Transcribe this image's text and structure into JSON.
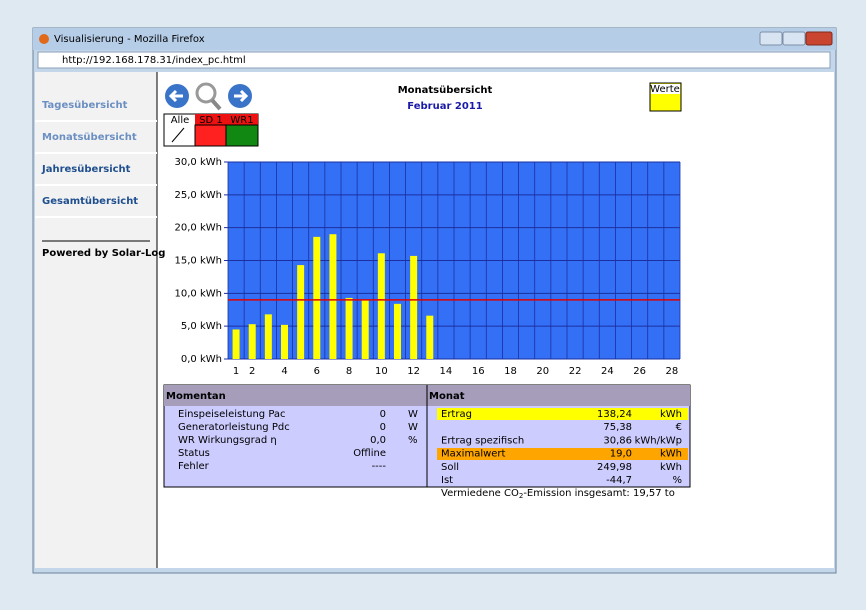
{
  "browser": {
    "title": "Visualisierung - Mozilla Firefox",
    "url": "http://192.168.178.31/index_pc.html"
  },
  "sidebar": {
    "links": [
      "Tagesübersicht",
      "Monatsübersicht",
      "Jahresübersicht",
      "Gesamtübersicht"
    ],
    "powered": "Powered by Solar-Log"
  },
  "legend": {
    "headers": [
      "Alle",
      "SD 1",
      "WR1"
    ],
    "werte": "Werte"
  },
  "chart_data": {
    "type": "bar",
    "title": "Monatsübersicht",
    "subtitle": "Februar 2011",
    "categories": [
      1,
      2,
      null,
      4,
      null,
      6,
      null,
      8,
      null,
      10,
      null,
      12,
      null,
      14,
      null,
      16,
      null,
      18,
      null,
      20,
      null,
      22,
      null,
      24,
      null,
      26,
      null,
      28
    ],
    "values": [
      4.5,
      5.3,
      6.8,
      5.2,
      14.3,
      18.6,
      19.0,
      9.3,
      9.0,
      16.1,
      8.4,
      15.7,
      6.6,
      null,
      null,
      null,
      null,
      null,
      null,
      null,
      null,
      null,
      null,
      null,
      null,
      null,
      null,
      null
    ],
    "color": "#ffff00",
    "background": "#3370f5",
    "reference_line": 9.0,
    "reference_color": "#e00000",
    "ylim": [
      0,
      30
    ],
    "yticks": [
      {
        "value": 0,
        "label": "0,0 kWh"
      },
      {
        "value": 5,
        "label": "5,0 kWh"
      },
      {
        "value": 10,
        "label": "10,0 kWh"
      },
      {
        "value": 15,
        "label": "15,0 kWh"
      },
      {
        "value": 20,
        "label": "20,0 kWh"
      },
      {
        "value": 25,
        "label": "25,0 kWh"
      },
      {
        "value": 30,
        "label": "30,0 kWh"
      }
    ],
    "grid": true
  },
  "momentan": {
    "title": "Momentan",
    "rows": [
      [
        "Einspeiseleistung Pac",
        "0",
        "W"
      ],
      [
        "Generatorleistung Pdc",
        "0",
        "W"
      ],
      [
        "WR Wirkungsgrad η",
        "0,0",
        "%"
      ],
      [
        "Status",
        "Offline"
      ],
      [
        "Fehler",
        "----"
      ]
    ]
  },
  "monat": {
    "title": "Monat",
    "rows": [
      [
        "Ertrag",
        "138,24",
        "kWh"
      ],
      [
        "75,38",
        "€"
      ],
      [
        "Ertrag spezifisch",
        "30,86",
        "kWh/kWp"
      ],
      [
        "Maximalwert",
        "19,0",
        "kWh"
      ],
      [
        "Soll",
        "249,98",
        "kWh"
      ],
      [
        "Ist",
        "-44,7",
        "%"
      ]
    ]
  },
  "footer": [
    "Vermiedene CO",
    "2",
    "-Emission insgesamt: 19,57 to"
  ]
}
